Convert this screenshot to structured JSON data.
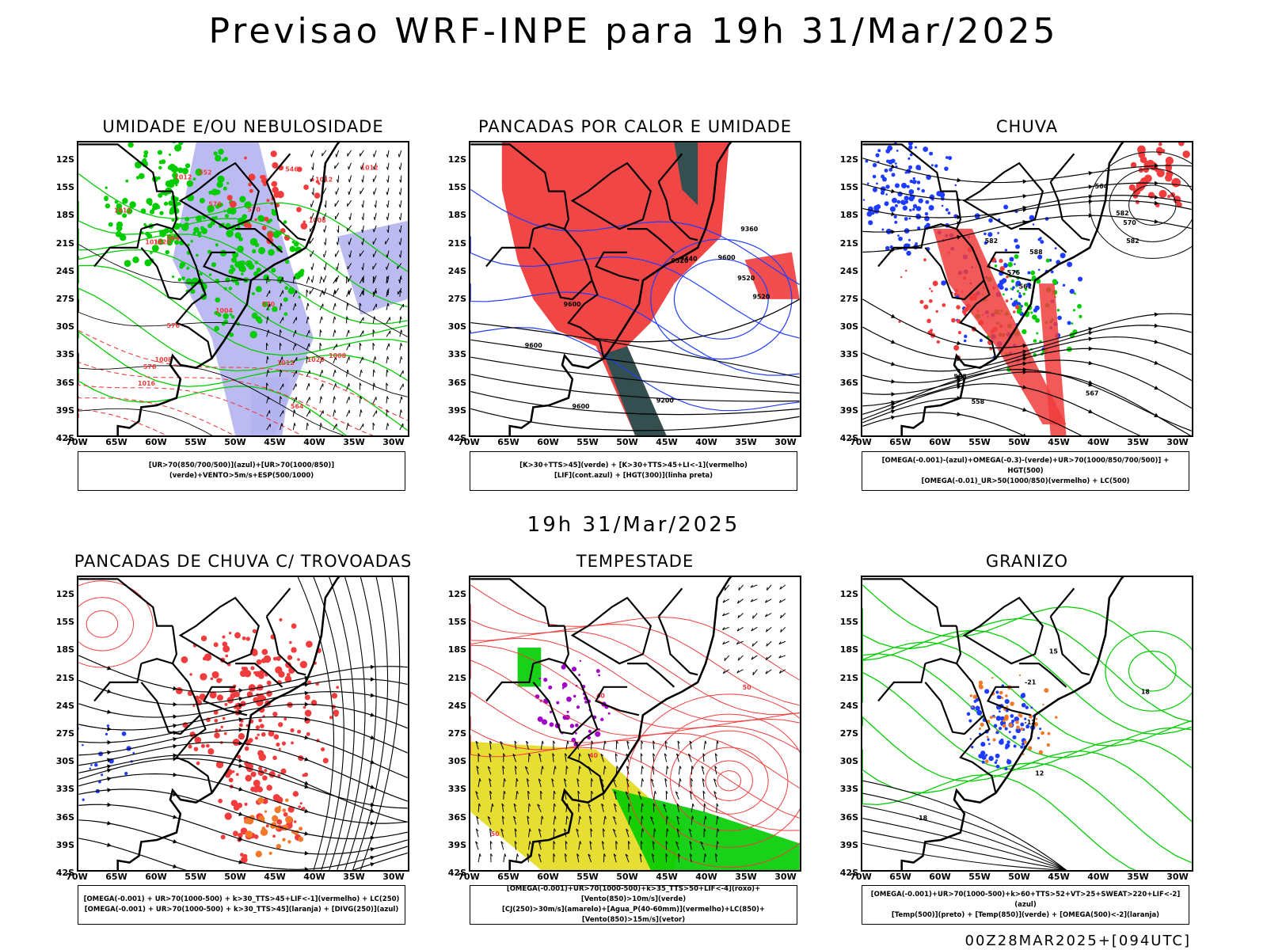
{
  "header": {
    "title": "Previsao WRF-INPE  para 19h 31/Mar/2025"
  },
  "mid_date": "19h 31/Mar/2025",
  "footer": {
    "run": "00Z28MAR2025+[094UTC]"
  },
  "axes": {
    "lat_ticks": [
      "12S",
      "15S",
      "18S",
      "21S",
      "24S",
      "27S",
      "30S",
      "33S",
      "36S",
      "39S",
      "42S"
    ],
    "lon_ticks": [
      "70W",
      "65W",
      "60W",
      "55W",
      "50W",
      "45W",
      "40W",
      "35W",
      "30W"
    ]
  },
  "colors": {
    "red": "#f03c3c",
    "green": "#00cc00",
    "blue": "#1e3cff",
    "lavender": "#b4b4f0",
    "darkteal": "#1e5050",
    "yellow": "#e6dc28",
    "orange": "#f07828",
    "purple": "#a000c8"
  },
  "panels": [
    {
      "title": "UMIDADE E/OU NEBULOSIDADE",
      "legend": [
        "[UR>70(850/700/500)](azul)+[UR>70(1000/850)](verde)+VENTO>5m/s+ESP(500/1000)"
      ],
      "labels": [
        "1008",
        "1008",
        "1012",
        "1008",
        "1004",
        "1012",
        "1012",
        "1012",
        "1016",
        "1012",
        "1020",
        "1020",
        "1016",
        "552",
        "546",
        "570",
        "564",
        "570",
        "576",
        "576",
        "576",
        "564"
      ]
    },
    {
      "title": "PANCADAS POR CALOR E UMIDADE",
      "legend": [
        "[K>30+TTS>45](verde) + [K>30+TTS>45+LI<-1](vermelho)",
        "[LIF](cont.azul) + [HGT(300)](linha preta)"
      ],
      "labels": [
        "9600",
        "9600",
        "9520",
        "9440",
        "9360",
        "9200",
        "9600",
        "9600",
        "9520",
        "9520"
      ]
    },
    {
      "title": "CHUVA",
      "legend": [
        "[OMEGA(-0.001)-(azul)+OMEGA(-0.3)-(verde)+UR>70(1000/850/700/500)] + HGT(500)",
        "[OMEGA(-0.01)_UR>50(1000/850)(vermelho) + LC(500)"
      ],
      "labels": [
        "588",
        "582",
        "582",
        "576",
        "570",
        "567",
        "564",
        "561",
        "558",
        "582",
        "585"
      ]
    },
    {
      "title": "PANCADAS DE CHUVA C/ TROVOADAS",
      "legend": [
        "[OMEGA(-0.001) + UR>70(1000-500) + k>30_TTS>45+LIF<-1](vermelho) + LC(250)",
        "[OMEGA(-0.001) + UR>70(1000-500) + k>30_TTS>45](laranja) + [DIVG(250)](azul)"
      ],
      "labels": []
    },
    {
      "title": "TEMPESTADE",
      "legend": [
        "[OMEGA(-0.001)+UR>70(1000-500)+k>35_TTS>50+LIF<-4](roxo)+[Vento(850)>10m/s](verde)",
        "[CJ(250)>30m/s](amarelo)+[Agua_P(40-60mm)](vermelho)+LC(850)+[Vento(850)>15m/s](vetor)"
      ],
      "labels": [
        "40",
        "40",
        "50",
        "50"
      ]
    },
    {
      "title": "GRANIZO",
      "legend": [
        "[OMEGA(-0.001)+UR>70(1000-500)+k>60+TTS>52+VT>25+SWEAT>220+LIF<-2](azul)",
        "[Temp(500)](preto) + [Temp(850)](verde) + [OMEGA(500)<-2](laranja)"
      ],
      "labels": [
        "-18",
        "-21",
        "-12",
        "15",
        "12",
        "18"
      ]
    }
  ]
}
